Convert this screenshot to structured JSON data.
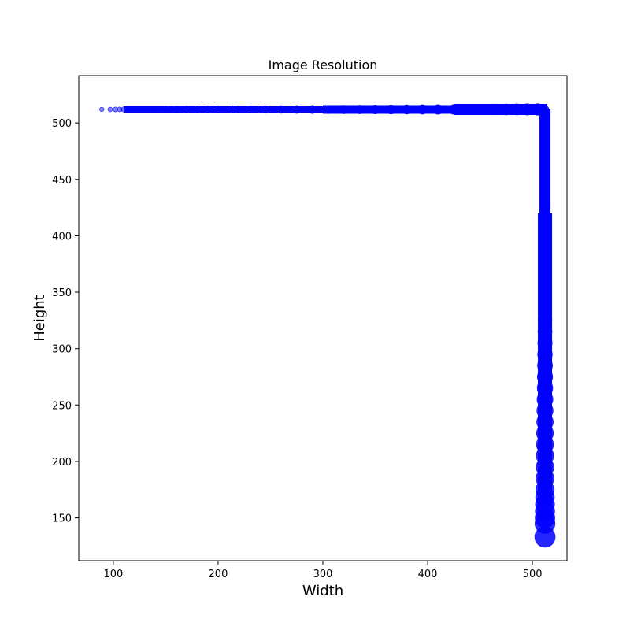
{
  "chart_data": {
    "type": "scatter",
    "title": "Image Resolution",
    "xlabel": "Width",
    "ylabel": "Height",
    "xlim": [
      67,
      533
    ],
    "ylim": [
      112,
      542
    ],
    "xticks": [
      100,
      200,
      300,
      400,
      500
    ],
    "yticks": [
      150,
      200,
      250,
      300,
      350,
      400,
      450,
      500
    ],
    "grid": false,
    "marker_color": "#0000ff",
    "marker_alpha": 0.5,
    "series": [
      {
        "points": {
          "width_fixed_512": [
            [
              512,
              512
            ],
            [
              512,
              505
            ],
            [
              512,
              495
            ],
            [
              512,
              485
            ],
            [
              512,
              475
            ],
            [
              512,
              465
            ],
            [
              512,
              455
            ],
            [
              512,
              445
            ],
            [
              512,
              435
            ],
            [
              512,
              425
            ],
            [
              512,
              415
            ],
            [
              512,
              405
            ],
            [
              512,
              395
            ],
            [
              512,
              385
            ],
            [
              512,
              375
            ],
            [
              512,
              365
            ],
            [
              512,
              355
            ],
            [
              512,
              345
            ],
            [
              512,
              335
            ],
            [
              512,
              325
            ],
            [
              512,
              315
            ],
            [
              512,
              305
            ],
            [
              512,
              295
            ],
            [
              512,
              285
            ],
            [
              512,
              275
            ],
            [
              512,
              265
            ],
            [
              512,
              255
            ],
            [
              512,
              245
            ],
            [
              512,
              235
            ],
            [
              512,
              225
            ],
            [
              512,
              215
            ],
            [
              512,
              205
            ],
            [
              512,
              195
            ],
            [
              512,
              185
            ],
            [
              512,
              175
            ],
            [
              512,
              168
            ],
            [
              512,
              162
            ],
            [
              512,
              156
            ],
            [
              512,
              150
            ],
            [
              512,
              145
            ],
            [
              512,
              133
            ]
          ],
          "height_fixed_512": [
            [
              89,
              512
            ],
            [
              97,
              512
            ],
            [
              102,
              512
            ],
            [
              106,
              512
            ],
            [
              110,
              512
            ],
            [
              115,
              512
            ],
            [
              120,
              512
            ],
            [
              130,
              512
            ],
            [
              140,
              512
            ],
            [
              150,
              512
            ],
            [
              160,
              512
            ],
            [
              170,
              512
            ],
            [
              180,
              512
            ],
            [
              190,
              512
            ],
            [
              200,
              512
            ],
            [
              215,
              512
            ],
            [
              230,
              512
            ],
            [
              245,
              512
            ],
            [
              260,
              512
            ],
            [
              275,
              512
            ],
            [
              290,
              512
            ],
            [
              305,
              512
            ],
            [
              320,
              512
            ],
            [
              335,
              512
            ],
            [
              350,
              512
            ],
            [
              365,
              512
            ],
            [
              380,
              512
            ],
            [
              395,
              512
            ],
            [
              410,
              512
            ],
            [
              425,
              512
            ],
            [
              435,
              512
            ],
            [
              445,
              512
            ],
            [
              455,
              512
            ],
            [
              465,
              512
            ],
            [
              475,
              512
            ],
            [
              485,
              512
            ],
            [
              495,
              512
            ],
            [
              505,
              512
            ]
          ]
        }
      }
    ]
  }
}
